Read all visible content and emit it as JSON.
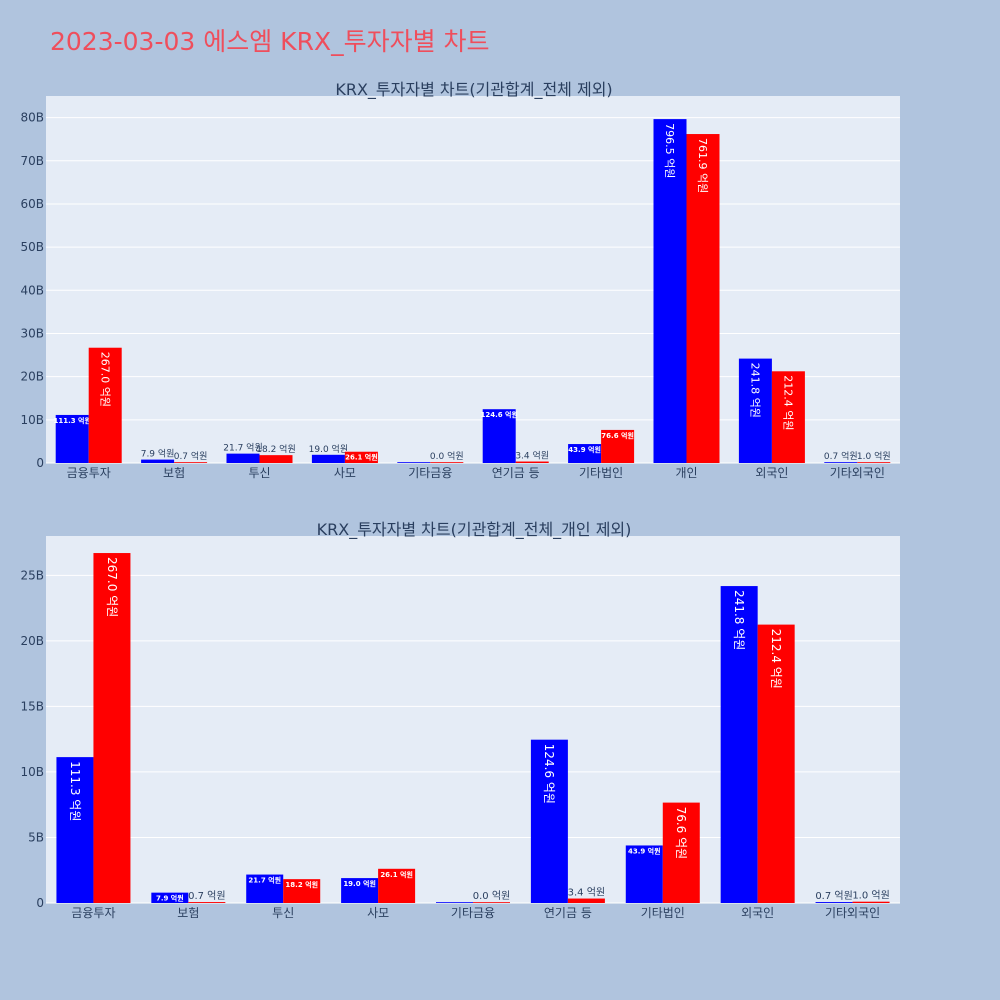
{
  "page_title": "2023-03-03 에스엠 KRX_투자자별 차트",
  "colors": {
    "series_a": "#0000ff",
    "series_b": "#ff0000",
    "plot_bg": "#e5ecf6",
    "paper_bg": "#b0c4de",
    "title": "#ef4e5c"
  },
  "chart_data": [
    {
      "type": "bar",
      "title": "KRX_투자자별 차트(기관합계_전체 제외)",
      "categories": [
        "금융투자",
        "보험",
        "투신",
        "사모",
        "기타금융",
        "연기금 등",
        "기타법인",
        "개인",
        "외국인",
        "기타외국인"
      ],
      "series": [
        {
          "values": [
            11.13,
            0.79,
            2.17,
            1.9,
            0.0,
            12.46,
            4.39,
            79.65,
            24.18,
            0.07
          ],
          "labels": [
            "111.3 억원",
            "7.9 억원",
            "21.7 억원",
            "19.0 억원",
            "",
            "124.6 억원",
            "43.9 억원",
            "796.5 억원",
            "241.8 억원",
            "0.7 억원"
          ]
        },
        {
          "values": [
            26.7,
            0.07,
            1.82,
            2.61,
            0.0,
            0.34,
            7.66,
            76.19,
            21.24,
            0.1
          ],
          "labels": [
            "267.0 억원",
            "0.7 억원",
            "18.2 억원",
            "26.1 억원",
            "0.0 억원",
            "3.4 억원",
            "76.6 억원",
            "761.9 억원",
            "212.4 억원",
            "1.0 억원"
          ]
        }
      ],
      "ylim": [
        0,
        85
      ],
      "yticks": [
        0,
        10,
        20,
        30,
        40,
        50,
        60,
        70,
        80
      ],
      "ytick_labels": [
        "0",
        "10B",
        "20B",
        "30B",
        "40B",
        "50B",
        "60B",
        "70B",
        "80B"
      ],
      "grid": true
    },
    {
      "type": "bar",
      "title": "KRX_투자자별 차트(기관합계_전체_개인 제외)",
      "categories": [
        "금융투자",
        "보험",
        "투신",
        "사모",
        "기타금융",
        "연기금 등",
        "기타법인",
        "외국인",
        "기타외국인"
      ],
      "series": [
        {
          "values": [
            11.13,
            0.79,
            2.17,
            1.9,
            0.0,
            12.46,
            4.39,
            24.18,
            0.07
          ],
          "labels": [
            "111.3 억원",
            "7.9 억원",
            "21.7 억원",
            "19.0 억원",
            "",
            "124.6 억원",
            "43.9 억원",
            "241.8 억원",
            "0.7 억원"
          ]
        },
        {
          "values": [
            26.7,
            0.07,
            1.82,
            2.61,
            0.0,
            0.34,
            7.66,
            21.24,
            0.1
          ],
          "labels": [
            "267.0 억원",
            "0.7 억원",
            "18.2 억원",
            "26.1 억원",
            "0.0 억원",
            "3.4 억원",
            "76.6 억원",
            "212.4 억원",
            "1.0 억원"
          ]
        }
      ],
      "ylim": [
        0,
        28
      ],
      "yticks": [
        0,
        5,
        10,
        15,
        20,
        25
      ],
      "ytick_labels": [
        "0",
        "5B",
        "10B",
        "15B",
        "20B",
        "25B"
      ],
      "grid": true
    }
  ]
}
